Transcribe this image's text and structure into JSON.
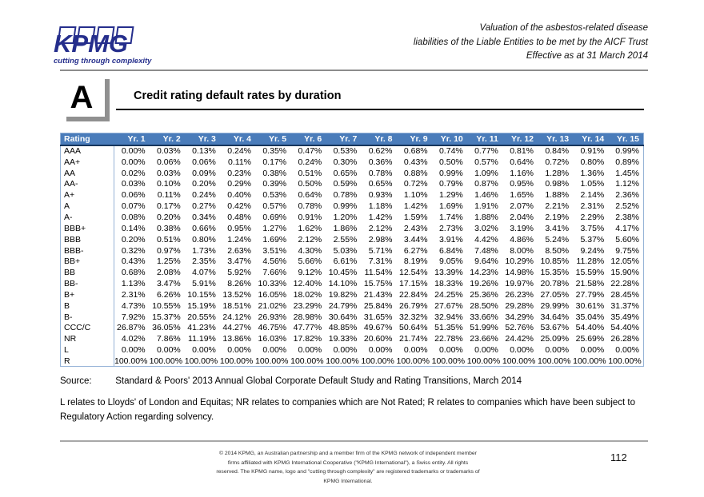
{
  "header": {
    "logo_text": "KPMG",
    "logo_tagline": "cutting through complexity",
    "doc_title_lines": [
      "Valuation of the asbestos-related disease",
      "liabilities of the Liable Entities to be met by the AICF Trust",
      "Effective as at 31 March 2014"
    ]
  },
  "section": {
    "marker": "A",
    "title": "Credit rating default rates by duration"
  },
  "table": {
    "columns": [
      "Rating",
      "Yr. 1",
      "Yr. 2",
      "Yr. 3",
      "Yr. 4",
      "Yr. 5",
      "Yr. 6",
      "Yr. 7",
      "Yr. 8",
      "Yr. 9",
      "Yr. 10",
      "Yr. 11",
      "Yr. 12",
      "Yr. 13",
      "Yr. 14",
      "Yr. 15"
    ],
    "rows": [
      {
        "rating": "AAA",
        "values": [
          "0.00%",
          "0.03%",
          "0.13%",
          "0.24%",
          "0.35%",
          "0.47%",
          "0.53%",
          "0.62%",
          "0.68%",
          "0.74%",
          "0.77%",
          "0.81%",
          "0.84%",
          "0.91%",
          "0.99%"
        ]
      },
      {
        "rating": "AA+",
        "values": [
          "0.00%",
          "0.06%",
          "0.06%",
          "0.11%",
          "0.17%",
          "0.24%",
          "0.30%",
          "0.36%",
          "0.43%",
          "0.50%",
          "0.57%",
          "0.64%",
          "0.72%",
          "0.80%",
          "0.89%"
        ]
      },
      {
        "rating": "AA",
        "values": [
          "0.02%",
          "0.03%",
          "0.09%",
          "0.23%",
          "0.38%",
          "0.51%",
          "0.65%",
          "0.78%",
          "0.88%",
          "0.99%",
          "1.09%",
          "1.16%",
          "1.28%",
          "1.36%",
          "1.45%"
        ]
      },
      {
        "rating": "AA-",
        "values": [
          "0.03%",
          "0.10%",
          "0.20%",
          "0.29%",
          "0.39%",
          "0.50%",
          "0.59%",
          "0.65%",
          "0.72%",
          "0.79%",
          "0.87%",
          "0.95%",
          "0.98%",
          "1.05%",
          "1.12%"
        ]
      },
      {
        "rating": "A+",
        "values": [
          "0.06%",
          "0.11%",
          "0.24%",
          "0.40%",
          "0.53%",
          "0.64%",
          "0.78%",
          "0.93%",
          "1.10%",
          "1.29%",
          "1.46%",
          "1.65%",
          "1.88%",
          "2.14%",
          "2.36%"
        ]
      },
      {
        "rating": "A",
        "values": [
          "0.07%",
          "0.17%",
          "0.27%",
          "0.42%",
          "0.57%",
          "0.78%",
          "0.99%",
          "1.18%",
          "1.42%",
          "1.69%",
          "1.91%",
          "2.07%",
          "2.21%",
          "2.31%",
          "2.52%"
        ]
      },
      {
        "rating": "A-",
        "values": [
          "0.08%",
          "0.20%",
          "0.34%",
          "0.48%",
          "0.69%",
          "0.91%",
          "1.20%",
          "1.42%",
          "1.59%",
          "1.74%",
          "1.88%",
          "2.04%",
          "2.19%",
          "2.29%",
          "2.38%"
        ]
      },
      {
        "rating": "BBB+",
        "values": [
          "0.14%",
          "0.38%",
          "0.66%",
          "0.95%",
          "1.27%",
          "1.62%",
          "1.86%",
          "2.12%",
          "2.43%",
          "2.73%",
          "3.02%",
          "3.19%",
          "3.41%",
          "3.75%",
          "4.17%"
        ]
      },
      {
        "rating": "BBB",
        "values": [
          "0.20%",
          "0.51%",
          "0.80%",
          "1.24%",
          "1.69%",
          "2.12%",
          "2.55%",
          "2.98%",
          "3.44%",
          "3.91%",
          "4.42%",
          "4.86%",
          "5.24%",
          "5.37%",
          "5.60%"
        ]
      },
      {
        "rating": "BBB-",
        "values": [
          "0.32%",
          "0.97%",
          "1.73%",
          "2.63%",
          "3.51%",
          "4.30%",
          "5.03%",
          "5.71%",
          "6.27%",
          "6.84%",
          "7.48%",
          "8.00%",
          "8.50%",
          "9.24%",
          "9.75%"
        ]
      },
      {
        "rating": "BB+",
        "values": [
          "0.43%",
          "1.25%",
          "2.35%",
          "3.47%",
          "4.56%",
          "5.66%",
          "6.61%",
          "7.31%",
          "8.19%",
          "9.05%",
          "9.64%",
          "10.29%",
          "10.85%",
          "11.28%",
          "12.05%"
        ]
      },
      {
        "rating": "BB",
        "values": [
          "0.68%",
          "2.08%",
          "4.07%",
          "5.92%",
          "7.66%",
          "9.12%",
          "10.45%",
          "11.54%",
          "12.54%",
          "13.39%",
          "14.23%",
          "14.98%",
          "15.35%",
          "15.59%",
          "15.90%"
        ]
      },
      {
        "rating": "BB-",
        "values": [
          "1.13%",
          "3.47%",
          "5.91%",
          "8.26%",
          "10.33%",
          "12.40%",
          "14.10%",
          "15.75%",
          "17.15%",
          "18.33%",
          "19.26%",
          "19.97%",
          "20.78%",
          "21.58%",
          "22.28%"
        ]
      },
      {
        "rating": "B+",
        "values": [
          "2.31%",
          "6.26%",
          "10.15%",
          "13.52%",
          "16.05%",
          "18.02%",
          "19.82%",
          "21.43%",
          "22.84%",
          "24.25%",
          "25.36%",
          "26.23%",
          "27.05%",
          "27.79%",
          "28.45%"
        ]
      },
      {
        "rating": "B",
        "values": [
          "4.73%",
          "10.55%",
          "15.19%",
          "18.51%",
          "21.02%",
          "23.29%",
          "24.79%",
          "25.84%",
          "26.79%",
          "27.67%",
          "28.50%",
          "29.28%",
          "29.99%",
          "30.61%",
          "31.37%"
        ]
      },
      {
        "rating": "B-",
        "values": [
          "7.92%",
          "15.37%",
          "20.55%",
          "24.12%",
          "26.93%",
          "28.98%",
          "30.64%",
          "31.65%",
          "32.32%",
          "32.94%",
          "33.66%",
          "34.29%",
          "34.64%",
          "35.04%",
          "35.49%"
        ]
      },
      {
        "rating": "CCC/C",
        "values": [
          "26.87%",
          "36.05%",
          "41.23%",
          "44.27%",
          "46.75%",
          "47.77%",
          "48.85%",
          "49.67%",
          "50.64%",
          "51.35%",
          "51.99%",
          "52.76%",
          "53.67%",
          "54.40%",
          "54.40%"
        ]
      },
      {
        "rating": "NR",
        "values": [
          "4.02%",
          "7.86%",
          "11.19%",
          "13.86%",
          "16.03%",
          "17.82%",
          "19.33%",
          "20.60%",
          "21.74%",
          "22.78%",
          "23.66%",
          "24.42%",
          "25.09%",
          "25.69%",
          "26.28%"
        ]
      },
      {
        "rating": "L",
        "values": [
          "0.00%",
          "0.00%",
          "0.00%",
          "0.00%",
          "0.00%",
          "0.00%",
          "0.00%",
          "0.00%",
          "0.00%",
          "0.00%",
          "0.00%",
          "0.00%",
          "0.00%",
          "0.00%",
          "0.00%"
        ]
      },
      {
        "rating": "R",
        "values": [
          "100.00%",
          "100.00%",
          "100.00%",
          "100.00%",
          "100.00%",
          "100.00%",
          "100.00%",
          "100.00%",
          "100.00%",
          "100.00%",
          "100.00%",
          "100.00%",
          "100.00%",
          "100.00%",
          "100.00%"
        ]
      }
    ]
  },
  "source": {
    "label": "Source:",
    "text": "Standard & Poors' 2013 Annual Global Corporate Default Study and Rating Transitions, March 2014"
  },
  "note": "L relates to Lloyds' of London and Equitas; NR relates to companies which are Not Rated; R relates to companies which have been subject to Regulatory Action regarding solvency.",
  "footer": {
    "copyright_lines": [
      "© 2014 KPMG, an Australian partnership and a member firm of the KPMG network of independent member",
      "firms affiliated with KPMG International Cooperative (\"KPMG International\"), a Swiss entity. All rights",
      "reserved. The KPMG name, logo and \"cutting through complexity\" are registered trademarks or trademarks of",
      "KPMG International."
    ],
    "page_number": "112"
  },
  "colors": {
    "kpmg_blue": "#252e8c",
    "table_header_blue": "#4a7cba",
    "table_header_underline": "#16365d",
    "table_border_light_blue": "#95b3d7"
  }
}
